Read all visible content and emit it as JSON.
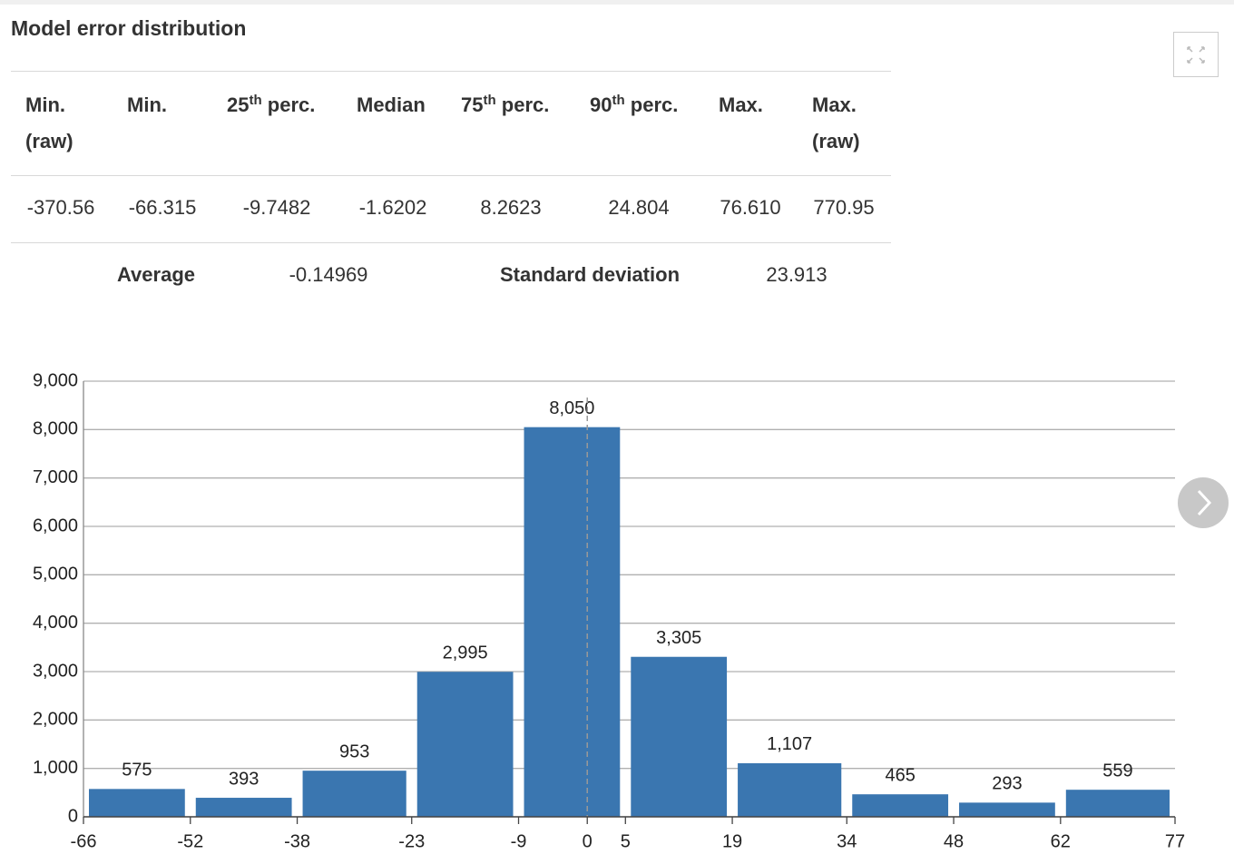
{
  "title": "Model error distribution",
  "table": {
    "headers": [
      [
        "Min. (raw)"
      ],
      [
        "Min."
      ],
      [
        "25",
        "th",
        " perc."
      ],
      [
        "Median"
      ],
      [
        "75",
        "th",
        " perc."
      ],
      [
        "90",
        "th",
        " perc."
      ],
      [
        "Max."
      ],
      [
        "Max. (raw)"
      ]
    ],
    "rows": [
      [
        "-370.56",
        "-66.315",
        "-9.7482",
        "-1.6202",
        "8.2623",
        "24.804",
        "76.610",
        "770.95"
      ]
    ]
  },
  "summary": [
    [
      "Average",
      "-0.14969"
    ],
    [
      "Standard deviation",
      "23.913"
    ]
  ],
  "chart_data": {
    "type": "histogram",
    "bins": [
      -66,
      -52,
      -38,
      -23,
      -9,
      5,
      19,
      34,
      48,
      62,
      77
    ],
    "values": [
      575,
      393,
      953,
      2995,
      8050,
      3305,
      1107,
      465,
      293,
      559
    ],
    "value_labels": [
      "575",
      "393",
      "953",
      "2,995",
      "8,050",
      "3,305",
      "1,107",
      "465",
      "293",
      "559"
    ],
    "color": "#3a76b0",
    "xlim": [
      -66,
      77
    ],
    "xticks": [
      -66,
      -52,
      -38,
      -23,
      -9,
      0,
      5,
      19,
      34,
      48,
      62,
      77
    ],
    "ylim": [
      0,
      9000
    ],
    "yticks": [
      0,
      {
        "value": 1000,
        "label": "1,000"
      },
      {
        "value": 2000,
        "label": "2,000"
      },
      {
        "value": 3000,
        "label": "3,000"
      },
      {
        "value": 4000,
        "label": "4,000"
      },
      {
        "value": 5000,
        "label": "5,000"
      },
      {
        "value": 6000,
        "label": "6,000"
      },
      {
        "value": 7000,
        "label": "7,000"
      },
      {
        "value": 8000,
        "label": "8,000"
      },
      {
        "value": 9000,
        "label": "9,000"
      }
    ],
    "grid": true
  }
}
